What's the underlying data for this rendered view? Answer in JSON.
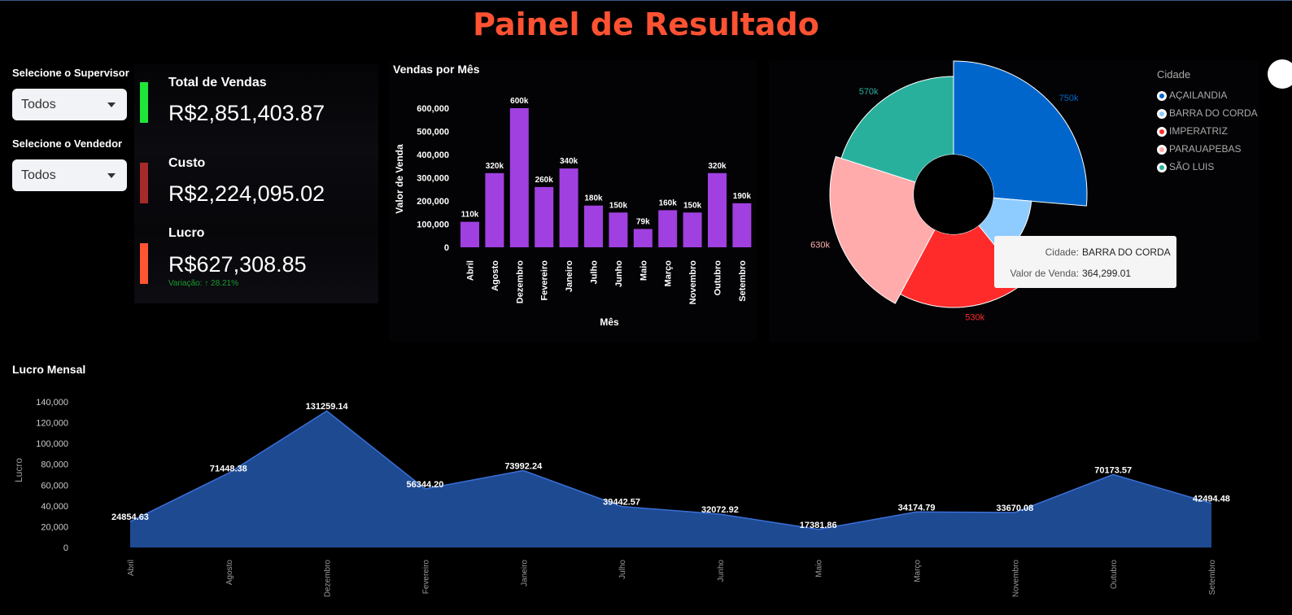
{
  "page_title": "Painel de Resultado",
  "filters": {
    "supervisor_label": "Selecione o Supervisor",
    "supervisor_value": "Todos",
    "vendedor_label": "Selecione o Vendedor",
    "vendedor_value": "Todos"
  },
  "metrics": {
    "vendas_label": "Total de Vendas",
    "vendas_value": "R$2,851,403.87",
    "vendas_color": "#1ee53a",
    "custo_label": "Custo",
    "custo_value": "R$2,224,095.02",
    "custo_color": "#a52a2a",
    "lucro_label": "Lucro",
    "lucro_value": "R$627,308.85",
    "lucro_color": "#ff5533",
    "variacao_text": "Variação: ↑ 28.21%"
  },
  "bar_chart": {
    "title": "Vendas por Mês",
    "xlabel": "Mês",
    "ylabel": "Valor de Venda",
    "color": "#a040e0"
  },
  "donut_chart": {
    "legend_title": "Cidade",
    "tooltip_city_key": "Cidade:",
    "tooltip_city_value": "BARRA DO CORDA",
    "tooltip_value_key": "Valor de Venda:",
    "tooltip_value_value": "364,299.01"
  },
  "area_chart": {
    "title": "Lucro Mensal",
    "ylabel": "Lucro",
    "color": "#1e4a92",
    "line_color": "#3a70d8"
  },
  "chart_data": [
    {
      "type": "bar",
      "title": "Vendas por Mês",
      "xlabel": "Mês",
      "ylabel": "Valor de Venda",
      "categories": [
        "Abril",
        "Agosto",
        "Dezembro",
        "Fevereiro",
        "Janeiro",
        "Julho",
        "Junho",
        "Maio",
        "Março",
        "Novembro",
        "Outubro",
        "Setembro"
      ],
      "values": [
        110000,
        320000,
        600000,
        260000,
        340000,
        180000,
        150000,
        79000,
        160000,
        150000,
        320000,
        190000
      ],
      "data_labels": [
        "110k",
        "320k",
        "600k",
        "260k",
        "340k",
        "180k",
        "150k",
        "79k",
        "160k",
        "150k",
        "320k",
        "190k"
      ],
      "yticks": [
        "0",
        "100,000",
        "200,000",
        "300,000",
        "400,000",
        "500,000",
        "600,000"
      ],
      "ylim": [
        0,
        600000
      ]
    },
    {
      "type": "pie",
      "legend_title": "Cidade",
      "categories": [
        "AÇAILANDIA",
        "BARRA DO CORDA",
        "IMPERATRIZ",
        "PARAUAPEBAS",
        "SÃO LUIS"
      ],
      "values": [
        750000,
        364299.01,
        530000,
        630000,
        570000
      ],
      "data_labels": [
        "750k",
        "",
        "530k",
        "630k",
        "570k"
      ],
      "colors": [
        "#0066cc",
        "#8ecbff",
        "#ff2b2b",
        "#ffabab",
        "#29b09d"
      ],
      "legend_placement": "right"
    },
    {
      "type": "area",
      "title": "Lucro Mensal",
      "ylabel": "Lucro",
      "categories": [
        "Abril",
        "Agosto",
        "Dezembro",
        "Fevereiro",
        "Janeiro",
        "Julho",
        "Junho",
        "Maio",
        "Março",
        "Novembro",
        "Outubro",
        "Setembro"
      ],
      "values": [
        24854.63,
        71448.38,
        131259.14,
        56344.2,
        73992.24,
        39442.57,
        32072.92,
        17381.86,
        34174.79,
        33670.08,
        70173.57,
        42494.48
      ],
      "data_labels": [
        "24854.63",
        "71448.38",
        "131259.14",
        "56344.20",
        "73992.24",
        "39442.57",
        "32072.92",
        "17381.86",
        "34174.79",
        "33670.08",
        "70173.57",
        "42494.48"
      ],
      "yticks": [
        "0",
        "20,000",
        "40,000",
        "60,000",
        "80,000",
        "100,000",
        "120,000",
        "140,000"
      ],
      "ylim": [
        0,
        140000
      ]
    }
  ]
}
